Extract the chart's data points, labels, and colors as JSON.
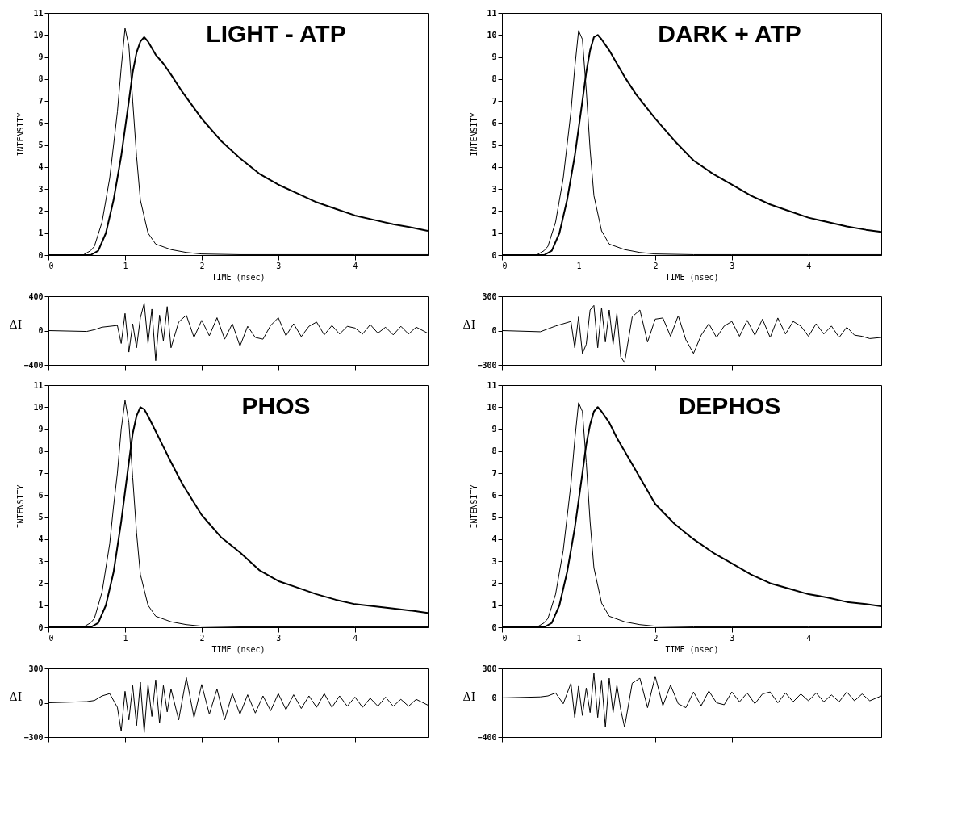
{
  "chart_data": [
    {
      "type": "line",
      "title": "LIGHT - ATP",
      "xlabel": "TIME (nsec)",
      "ylabel": "INTENSITY",
      "xlim": [
        0,
        4.95
      ],
      "xticks": [
        0,
        1,
        2,
        3,
        4
      ],
      "ylim": [
        0,
        11
      ],
      "yticks": [
        0,
        1,
        2,
        3,
        4,
        5,
        6,
        7,
        8,
        9,
        10,
        11
      ],
      "grid": false,
      "series": [
        {
          "color": "#000000",
          "x": [
            0,
            0.45,
            0.55,
            0.6,
            0.7,
            0.8,
            0.85,
            0.9,
            0.95,
            1.0,
            1.05,
            1.1,
            1.15,
            1.2,
            1.3,
            1.4,
            1.6,
            1.8,
            2.0,
            2.5,
            3,
            4,
            4.95
          ],
          "values": [
            0,
            0,
            0.2,
            0.4,
            1.5,
            3.5,
            5,
            6.5,
            8.5,
            10.3,
            9.5,
            7,
            4.5,
            2.5,
            1,
            0.5,
            0.25,
            0.12,
            0.05,
            0.02,
            0.02,
            0.02,
            0.02
          ]
        },
        {
          "color": "#000000",
          "x": [
            0,
            0.55,
            0.65,
            0.75,
            0.85,
            0.95,
            1.05,
            1.1,
            1.15,
            1.2,
            1.25,
            1.3,
            1.4,
            1.5,
            1.6,
            1.75,
            2.0,
            2.25,
            2.5,
            2.75,
            3.0,
            3.25,
            3.5,
            3.75,
            4.0,
            4.25,
            4.5,
            4.75,
            4.95
          ],
          "values": [
            0,
            0,
            0.2,
            1,
            2.5,
            4.5,
            7,
            8.3,
            9.2,
            9.7,
            9.9,
            9.7,
            9.1,
            8.7,
            8.2,
            7.4,
            6.2,
            5.2,
            4.4,
            3.7,
            3.2,
            2.8,
            2.4,
            2.1,
            1.8,
            1.6,
            1.4,
            1.25,
            1.1
          ]
        }
      ]
    },
    {
      "type": "line",
      "title": "DARK + ATP",
      "xlabel": "TIME (nsec)",
      "ylabel": "INTENSITY",
      "xlim": [
        0,
        4.95
      ],
      "xticks": [
        0,
        1,
        2,
        3,
        4
      ],
      "ylim": [
        0,
        11
      ],
      "yticks": [
        0,
        1,
        2,
        3,
        4,
        5,
        6,
        7,
        8,
        9,
        10,
        11
      ],
      "grid": false,
      "series": [
        {
          "color": "#000000",
          "x": [
            0,
            0.45,
            0.55,
            0.6,
            0.7,
            0.8,
            0.85,
            0.9,
            0.95,
            1.0,
            1.05,
            1.1,
            1.15,
            1.2,
            1.3,
            1.4,
            1.6,
            1.8,
            2.0,
            2.5,
            3,
            4,
            4.95
          ],
          "values": [
            0,
            0,
            0.2,
            0.4,
            1.5,
            3.5,
            5,
            6.5,
            8.5,
            10.2,
            9.8,
            7.5,
            4.8,
            2.7,
            1.1,
            0.5,
            0.25,
            0.12,
            0.05,
            0.02,
            0.02,
            0.02,
            0.02
          ]
        },
        {
          "color": "#000000",
          "x": [
            0,
            0.55,
            0.65,
            0.75,
            0.85,
            0.95,
            1.05,
            1.1,
            1.15,
            1.2,
            1.25,
            1.3,
            1.4,
            1.5,
            1.6,
            1.75,
            2.0,
            2.25,
            2.5,
            2.75,
            3.0,
            3.25,
            3.5,
            3.75,
            4.0,
            4.25,
            4.5,
            4.75,
            4.95
          ],
          "values": [
            0,
            0,
            0.2,
            1,
            2.5,
            4.5,
            7,
            8.3,
            9.3,
            9.9,
            10,
            9.8,
            9.3,
            8.7,
            8.1,
            7.3,
            6.2,
            5.2,
            4.3,
            3.7,
            3.2,
            2.7,
            2.3,
            2.0,
            1.7,
            1.5,
            1.3,
            1.15,
            1.05
          ]
        }
      ]
    },
    {
      "type": "line",
      "ylabel": "ΔI",
      "xlim": [
        0,
        4.95
      ],
      "xticks": [
        0,
        1,
        2,
        3,
        4
      ],
      "ylim": [
        -400,
        400
      ],
      "yticks": [
        -400,
        0,
        400
      ],
      "tick_labels": "y",
      "grid": false,
      "series": [
        {
          "color": "#000000",
          "x": [
            0,
            0.5,
            0.6,
            0.7,
            0.8,
            0.9,
            0.95,
            1.0,
            1.05,
            1.1,
            1.15,
            1.2,
            1.25,
            1.3,
            1.35,
            1.4,
            1.45,
            1.5,
            1.55,
            1.6,
            1.7,
            1.8,
            1.9,
            2.0,
            2.1,
            2.2,
            2.3,
            2.4,
            2.5,
            2.6,
            2.7,
            2.8,
            2.9,
            3.0,
            3.1,
            3.2,
            3.3,
            3.4,
            3.5,
            3.6,
            3.7,
            3.8,
            3.9,
            4.0,
            4.1,
            4.2,
            4.3,
            4.4,
            4.5,
            4.6,
            4.7,
            4.8,
            4.95
          ],
          "values": [
            0,
            -10,
            10,
            40,
            50,
            60,
            -150,
            200,
            -250,
            80,
            -200,
            150,
            320,
            -150,
            250,
            -350,
            180,
            -120,
            280,
            -200,
            100,
            180,
            -80,
            120,
            -60,
            150,
            -100,
            80,
            -180,
            50,
            -80,
            -100,
            60,
            150,
            -60,
            80,
            -70,
            50,
            100,
            -50,
            60,
            -40,
            50,
            30,
            -40,
            70,
            -30,
            40,
            -50,
            50,
            -40,
            40,
            -30
          ]
        }
      ]
    },
    {
      "type": "line",
      "ylabel": "ΔI",
      "xlim": [
        0,
        4.95
      ],
      "xticks": [
        0,
        1,
        2,
        3,
        4
      ],
      "ylim": [
        -300,
        300
      ],
      "yticks": [
        -300,
        0,
        300
      ],
      "tick_labels": "y",
      "grid": false,
      "series": [
        {
          "color": "#000000",
          "x": [
            0,
            0.5,
            0.6,
            0.7,
            0.8,
            0.9,
            0.95,
            1.0,
            1.05,
            1.1,
            1.15,
            1.2,
            1.25,
            1.3,
            1.35,
            1.4,
            1.45,
            1.5,
            1.55,
            1.6,
            1.7,
            1.8,
            1.9,
            2.0,
            2.1,
            2.2,
            2.3,
            2.4,
            2.5,
            2.6,
            2.7,
            2.8,
            2.9,
            3.0,
            3.1,
            3.2,
            3.3,
            3.4,
            3.5,
            3.6,
            3.7,
            3.8,
            3.9,
            4.0,
            4.1,
            4.2,
            4.3,
            4.4,
            4.5,
            4.6,
            4.7,
            4.8,
            4.95
          ],
          "values": [
            0,
            -10,
            15,
            40,
            60,
            80,
            -150,
            120,
            -200,
            -120,
            180,
            220,
            -150,
            200,
            -100,
            180,
            -120,
            150,
            -230,
            -280,
            120,
            180,
            -100,
            100,
            110,
            -50,
            130,
            -80,
            -200,
            -40,
            60,
            -60,
            40,
            80,
            -50,
            90,
            -40,
            100,
            -60,
            110,
            -30,
            80,
            40,
            -50,
            60,
            -30,
            40,
            -60,
            30,
            -40,
            -50,
            -70,
            -60
          ]
        }
      ]
    },
    {
      "type": "line",
      "title": "PHOS",
      "xlabel": "TIME (nsec)",
      "ylabel": "INTENSITY",
      "xlim": [
        0,
        4.95
      ],
      "xticks": [
        0,
        1,
        2,
        3,
        4
      ],
      "ylim": [
        0,
        11
      ],
      "yticks": [
        0,
        1,
        2,
        3,
        4,
        5,
        6,
        7,
        8,
        9,
        10,
        11
      ],
      "grid": false,
      "series": [
        {
          "color": "#000000",
          "x": [
            0,
            0.45,
            0.55,
            0.6,
            0.7,
            0.8,
            0.85,
            0.9,
            0.95,
            1.0,
            1.05,
            1.1,
            1.15,
            1.2,
            1.3,
            1.4,
            1.6,
            1.8,
            2.0,
            2.5,
            3,
            4,
            4.95
          ],
          "values": [
            0,
            0,
            0.2,
            0.4,
            1.6,
            3.8,
            5.5,
            7,
            9,
            10.3,
            9.3,
            6.8,
            4.3,
            2.4,
            1,
            0.5,
            0.25,
            0.12,
            0.05,
            0.02,
            0.02,
            0.02,
            0.02
          ]
        },
        {
          "color": "#000000",
          "x": [
            0,
            0.55,
            0.65,
            0.75,
            0.85,
            0.95,
            1.05,
            1.1,
            1.15,
            1.2,
            1.25,
            1.3,
            1.4,
            1.5,
            1.6,
            1.75,
            2.0,
            2.25,
            2.5,
            2.75,
            3.0,
            3.25,
            3.5,
            3.75,
            4.0,
            4.25,
            4.5,
            4.75,
            4.95
          ],
          "values": [
            0,
            0,
            0.2,
            1,
            2.5,
            4.8,
            7.5,
            8.8,
            9.6,
            10,
            9.9,
            9.6,
            8.9,
            8.2,
            7.5,
            6.5,
            5.1,
            4.1,
            3.4,
            2.6,
            2.1,
            1.8,
            1.5,
            1.25,
            1.05,
            0.95,
            0.85,
            0.75,
            0.65
          ]
        }
      ]
    },
    {
      "type": "line",
      "title": "DEPHOS",
      "xlabel": "TIME (nsec)",
      "ylabel": "INTENSITY",
      "xlim": [
        0,
        4.95
      ],
      "xticks": [
        0,
        1,
        2,
        3,
        4
      ],
      "ylim": [
        0,
        11
      ],
      "yticks": [
        0,
        1,
        2,
        3,
        4,
        5,
        6,
        7,
        8,
        9,
        10,
        11
      ],
      "grid": false,
      "series": [
        {
          "color": "#000000",
          "x": [
            0,
            0.45,
            0.55,
            0.6,
            0.7,
            0.8,
            0.85,
            0.9,
            0.95,
            1.0,
            1.05,
            1.1,
            1.15,
            1.2,
            1.3,
            1.4,
            1.6,
            1.8,
            2.0,
            2.5,
            3,
            4,
            4.95
          ],
          "values": [
            0,
            0,
            0.2,
            0.4,
            1.5,
            3.5,
            5,
            6.5,
            8.5,
            10.2,
            9.8,
            7.5,
            4.8,
            2.7,
            1.1,
            0.5,
            0.25,
            0.12,
            0.05,
            0.02,
            0.02,
            0.02,
            0.02
          ]
        },
        {
          "color": "#000000",
          "x": [
            0,
            0.55,
            0.65,
            0.75,
            0.85,
            0.95,
            1.05,
            1.1,
            1.15,
            1.2,
            1.25,
            1.3,
            1.4,
            1.5,
            1.6,
            1.75,
            2.0,
            2.25,
            2.5,
            2.75,
            3.0,
            3.25,
            3.5,
            3.75,
            4.0,
            4.25,
            4.5,
            4.75,
            4.95
          ],
          "values": [
            0,
            0,
            0.2,
            1,
            2.5,
            4.5,
            7,
            8.3,
            9.2,
            9.8,
            10,
            9.8,
            9.3,
            8.6,
            8.0,
            7.1,
            5.6,
            4.7,
            4.0,
            3.4,
            2.9,
            2.4,
            2.0,
            1.75,
            1.5,
            1.35,
            1.15,
            1.05,
            0.95
          ]
        }
      ]
    },
    {
      "type": "line",
      "ylabel": "ΔI",
      "xlim": [
        0,
        4.95
      ],
      "xticks": [
        0,
        1,
        2,
        3,
        4
      ],
      "ylim": [
        -300,
        300
      ],
      "yticks": [
        -300,
        0,
        300
      ],
      "tick_labels": "y",
      "grid": false,
      "series": [
        {
          "color": "#000000",
          "x": [
            0,
            0.5,
            0.6,
            0.7,
            0.8,
            0.9,
            0.95,
            1.0,
            1.05,
            1.1,
            1.15,
            1.2,
            1.25,
            1.3,
            1.35,
            1.4,
            1.45,
            1.5,
            1.55,
            1.6,
            1.7,
            1.8,
            1.9,
            2.0,
            2.1,
            2.2,
            2.3,
            2.4,
            2.5,
            2.6,
            2.7,
            2.8,
            2.9,
            3.0,
            3.1,
            3.2,
            3.3,
            3.4,
            3.5,
            3.6,
            3.7,
            3.8,
            3.9,
            4.0,
            4.1,
            4.2,
            4.3,
            4.4,
            4.5,
            4.6,
            4.7,
            4.8,
            4.95
          ],
          "values": [
            0,
            10,
            20,
            60,
            80,
            -40,
            -250,
            100,
            -150,
            150,
            -200,
            180,
            -260,
            160,
            -120,
            200,
            -180,
            150,
            -80,
            120,
            -150,
            220,
            -130,
            160,
            -100,
            120,
            -150,
            80,
            -100,
            70,
            -90,
            60,
            -70,
            80,
            -60,
            70,
            -50,
            60,
            -40,
            80,
            -40,
            60,
            -30,
            50,
            -40,
            40,
            -30,
            50,
            -30,
            30,
            -30,
            30,
            -20
          ]
        }
      ]
    },
    {
      "type": "line",
      "ylabel": "ΔI",
      "xlim": [
        0,
        4.95
      ],
      "xticks": [
        0,
        1,
        2,
        3,
        4
      ],
      "ylim": [
        -400,
        300
      ],
      "yticks": [
        -400,
        0,
        300
      ],
      "tick_labels": "y",
      "grid": false,
      "series": [
        {
          "color": "#000000",
          "x": [
            0,
            0.5,
            0.6,
            0.7,
            0.8,
            0.9,
            0.95,
            1.0,
            1.05,
            1.1,
            1.15,
            1.2,
            1.25,
            1.3,
            1.35,
            1.4,
            1.45,
            1.5,
            1.55,
            1.6,
            1.7,
            1.8,
            1.9,
            2.0,
            2.1,
            2.2,
            2.3,
            2.4,
            2.5,
            2.6,
            2.7,
            2.8,
            2.9,
            3.0,
            3.1,
            3.2,
            3.3,
            3.4,
            3.5,
            3.6,
            3.7,
            3.8,
            3.9,
            4.0,
            4.1,
            4.2,
            4.3,
            4.4,
            4.5,
            4.6,
            4.7,
            4.8,
            4.95
          ],
          "values": [
            0,
            10,
            20,
            50,
            -60,
            150,
            -200,
            120,
            -180,
            100,
            -150,
            250,
            -200,
            180,
            -300,
            200,
            -150,
            130,
            -120,
            -300,
            150,
            200,
            -100,
            220,
            -80,
            130,
            -60,
            -100,
            60,
            -80,
            70,
            -50,
            -70,
            60,
            -40,
            50,
            -60,
            40,
            60,
            -50,
            50,
            -40,
            40,
            -30,
            50,
            -40,
            30,
            -40,
            60,
            -30,
            40,
            -30,
            20
          ]
        }
      ]
    }
  ]
}
